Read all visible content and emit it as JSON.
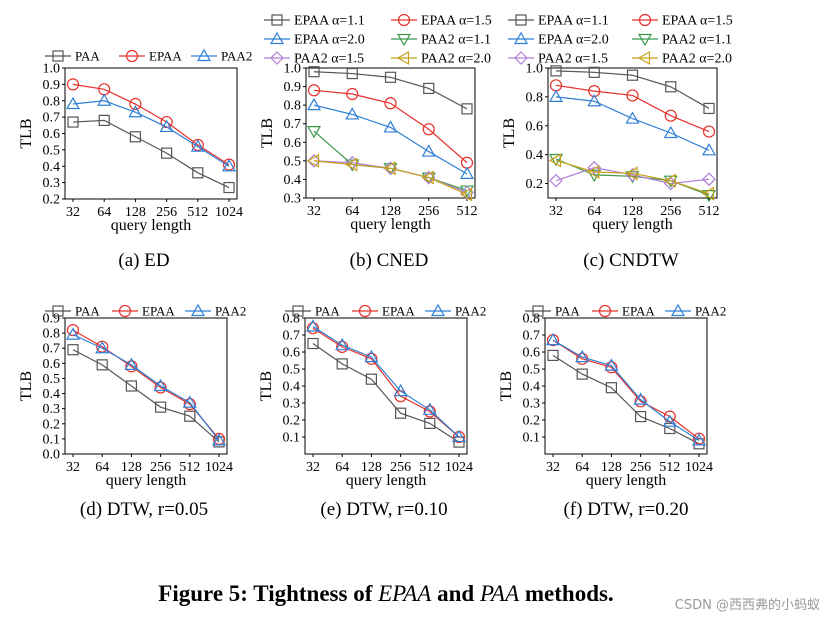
{
  "figure_caption": {
    "prefix": "Figure 5: Tightness of ",
    "m1": "EPAA",
    "mid": " and ",
    "m2": "PAA",
    "suffix": " methods."
  },
  "watermark": "CSDN @西西弗的小蚂蚁",
  "styles": {
    "PAA": {
      "color": "#555555",
      "marker": "square"
    },
    "EPAA": {
      "color": "#e8302a",
      "marker": "circle"
    },
    "PAA2": {
      "color": "#2f7fd6",
      "marker": "triangle-up"
    },
    "EPAA α=1.1": {
      "color": "#555555",
      "marker": "square"
    },
    "EPAA α=1.5": {
      "color": "#e8302a",
      "marker": "circle"
    },
    "EPAA α=2.0": {
      "color": "#2f7fd6",
      "marker": "triangle-up"
    },
    "PAA2 α=1.1": {
      "color": "#3a9a4a",
      "marker": "triangle-down"
    },
    "PAA2 α=1.5": {
      "color": "#b07fd8",
      "marker": "diamond"
    },
    "PAA2 α=2.0": {
      "color": "#c8a019",
      "marker": "triangle-left"
    }
  },
  "chart_data": [
    {
      "id": "a",
      "type": "line",
      "caption": "(a)  ED",
      "xlabel": "query length",
      "ylabel": "TLB",
      "categories": [
        "32",
        "64",
        "128",
        "256",
        "512",
        "1024"
      ],
      "ylim": [
        0.2,
        1.0
      ],
      "yticks": [
        "0.2",
        "0.3",
        "0.4",
        "0.5",
        "0.6",
        "0.7",
        "0.8",
        "0.9",
        "1.0"
      ],
      "legend": [
        "PAA",
        "EPAA",
        "PAA2"
      ],
      "series": [
        {
          "name": "PAA",
          "values": [
            0.67,
            0.68,
            0.58,
            0.48,
            0.36,
            0.27
          ]
        },
        {
          "name": "EPAA",
          "values": [
            0.9,
            0.87,
            0.78,
            0.67,
            0.53,
            0.41
          ]
        },
        {
          "name": "PAA2",
          "values": [
            0.78,
            0.8,
            0.73,
            0.64,
            0.52,
            0.4
          ]
        }
      ]
    },
    {
      "id": "b",
      "type": "line",
      "caption": "(b)  CNED",
      "xlabel": "query length",
      "ylabel": "TLB",
      "categories": [
        "32",
        "64",
        "128",
        "256",
        "512"
      ],
      "ylim": [
        0.3,
        1.0
      ],
      "yticks": [
        "0.3",
        "0.4",
        "0.5",
        "0.6",
        "0.7",
        "0.8",
        "0.9",
        "1.0"
      ],
      "legend": [
        "EPAA α=1.1",
        "EPAA α=1.5",
        "EPAA α=2.0",
        "PAA2 α=1.1",
        "PAA2 α=1.5",
        "PAA2 α=2.0"
      ],
      "series": [
        {
          "name": "EPAA α=1.1",
          "values": [
            0.98,
            0.97,
            0.95,
            0.89,
            0.78
          ]
        },
        {
          "name": "EPAA α=1.5",
          "values": [
            0.88,
            0.86,
            0.81,
            0.67,
            0.49
          ]
        },
        {
          "name": "EPAA α=2.0",
          "values": [
            0.8,
            0.75,
            0.68,
            0.55,
            0.43
          ]
        },
        {
          "name": "PAA2 α=1.1",
          "values": [
            0.66,
            0.48,
            0.46,
            0.41,
            0.34
          ]
        },
        {
          "name": "PAA2 α=1.5",
          "values": [
            0.5,
            0.49,
            0.46,
            0.41,
            0.33
          ]
        },
        {
          "name": "PAA2 α=2.0",
          "values": [
            0.5,
            0.48,
            0.46,
            0.41,
            0.32
          ]
        }
      ]
    },
    {
      "id": "c",
      "type": "line",
      "caption": "(c)  CNDTW",
      "xlabel": "query length",
      "ylabel": "TLB",
      "categories": [
        "32",
        "64",
        "128",
        "256",
        "512"
      ],
      "ylim": [
        0.1,
        1.0
      ],
      "yticks": [
        "0.2",
        "0.4",
        "0.6",
        "0.8",
        "1.0"
      ],
      "legend": [
        "EPAA α=1.1",
        "EPAA α=1.5",
        "EPAA α=2.0",
        "PAA2 α=1.1",
        "PAA2 α=1.5",
        "PAA2 α=2.0"
      ],
      "series": [
        {
          "name": "EPAA α=1.1",
          "values": [
            0.98,
            0.97,
            0.95,
            0.87,
            0.72
          ]
        },
        {
          "name": "EPAA α=1.5",
          "values": [
            0.88,
            0.84,
            0.81,
            0.67,
            0.56
          ]
        },
        {
          "name": "EPAA α=2.0",
          "values": [
            0.8,
            0.77,
            0.65,
            0.55,
            0.43
          ]
        },
        {
          "name": "PAA2 α=1.1",
          "values": [
            0.37,
            0.26,
            0.25,
            0.22,
            0.12
          ]
        },
        {
          "name": "PAA2 α=1.5",
          "values": [
            0.22,
            0.31,
            0.26,
            0.2,
            0.23
          ]
        },
        {
          "name": "PAA2 α=2.0",
          "values": [
            0.36,
            0.28,
            0.27,
            0.22,
            0.13
          ]
        }
      ]
    },
    {
      "id": "d",
      "type": "line",
      "caption": "(d)  DTW, r=0.05",
      "xlabel": "query length",
      "ylabel": "TLB",
      "categories": [
        "32",
        "64",
        "128",
        "256",
        "512",
        "1024"
      ],
      "ylim": [
        0.0,
        0.9
      ],
      "yticks": [
        "0.0",
        "0.1",
        "0.2",
        "0.3",
        "0.4",
        "0.5",
        "0.6",
        "0.7",
        "0.8",
        "0.9"
      ],
      "legend": [
        "PAA",
        "EPAA",
        "PAA2"
      ],
      "series": [
        {
          "name": "PAA",
          "values": [
            0.69,
            0.59,
            0.45,
            0.31,
            0.25,
            0.08
          ]
        },
        {
          "name": "EPAA",
          "values": [
            0.82,
            0.71,
            0.58,
            0.44,
            0.33,
            0.1
          ]
        },
        {
          "name": "PAA2",
          "values": [
            0.79,
            0.7,
            0.59,
            0.45,
            0.34,
            0.09
          ]
        }
      ]
    },
    {
      "id": "e",
      "type": "line",
      "caption": "(e)  DTW, r=0.10",
      "xlabel": "query length",
      "ylabel": "TLB",
      "categories": [
        "32",
        "64",
        "128",
        "256",
        "512",
        "1024"
      ],
      "ylim": [
        0.0,
        0.8
      ],
      "yticks": [
        "0.1",
        "0.2",
        "0.3",
        "0.4",
        "0.5",
        "0.6",
        "0.7",
        "0.8"
      ],
      "legend": [
        "PAA",
        "EPAA",
        "PAA2"
      ],
      "series": [
        {
          "name": "PAA",
          "values": [
            0.65,
            0.53,
            0.44,
            0.24,
            0.18,
            0.07
          ]
        },
        {
          "name": "EPAA",
          "values": [
            0.74,
            0.63,
            0.56,
            0.34,
            0.25,
            0.1
          ]
        },
        {
          "name": "PAA2",
          "values": [
            0.75,
            0.64,
            0.57,
            0.37,
            0.26,
            0.1
          ]
        }
      ]
    },
    {
      "id": "f",
      "type": "line",
      "caption": "(f)  DTW, r=0.20",
      "xlabel": "query length",
      "ylabel": "TLB",
      "categories": [
        "32",
        "64",
        "128",
        "256",
        "512",
        "1024"
      ],
      "ylim": [
        0.0,
        0.8
      ],
      "yticks": [
        "0.1",
        "0.2",
        "0.3",
        "0.4",
        "0.5",
        "0.6",
        "0.7",
        "0.8"
      ],
      "legend": [
        "PAA",
        "EPAA",
        "PAA2"
      ],
      "series": [
        {
          "name": "PAA",
          "values": [
            0.58,
            0.47,
            0.39,
            0.22,
            0.15,
            0.06
          ]
        },
        {
          "name": "EPAA",
          "values": [
            0.67,
            0.56,
            0.51,
            0.31,
            0.22,
            0.09
          ]
        },
        {
          "name": "PAA2",
          "values": [
            0.67,
            0.57,
            0.52,
            0.32,
            0.19,
            0.08
          ]
        }
      ]
    }
  ]
}
